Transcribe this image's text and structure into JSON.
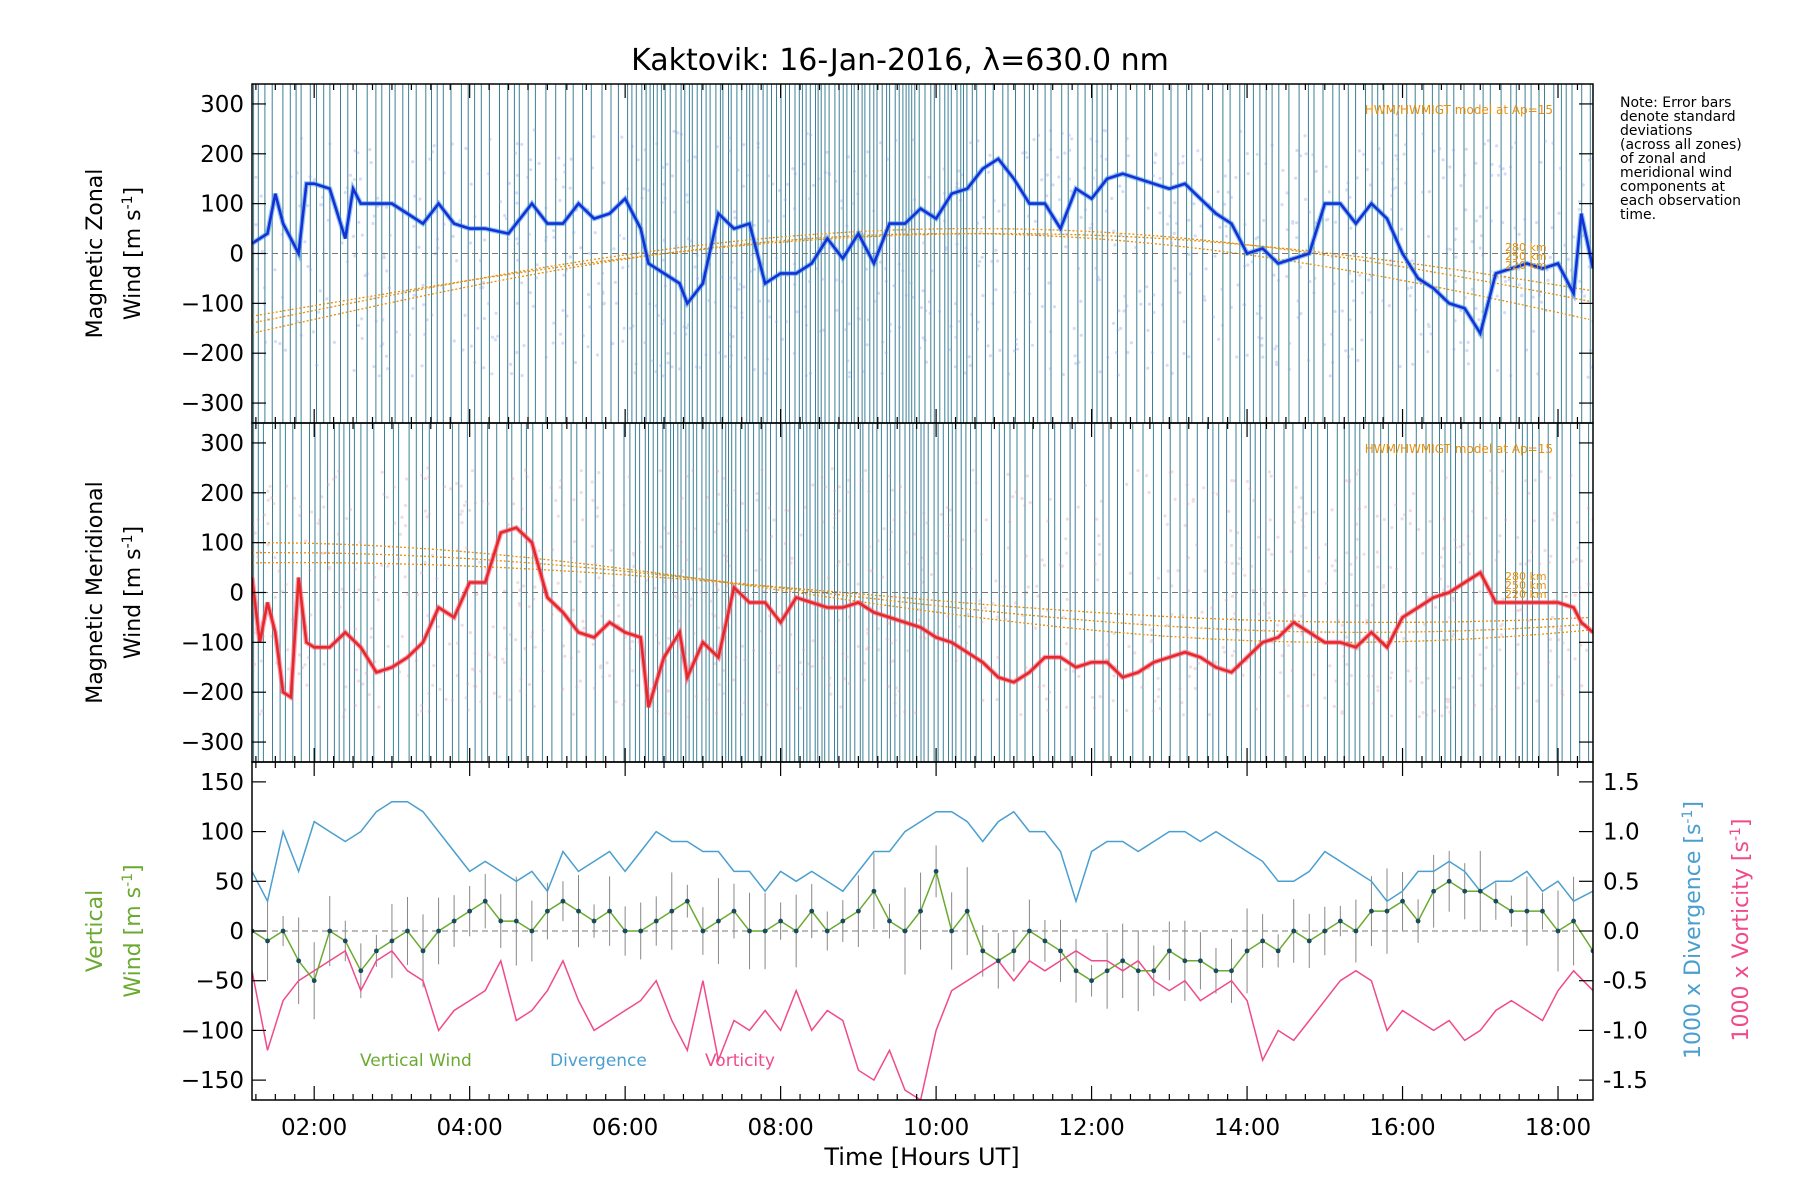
{
  "note_lines": [
    "Note: Error bars",
    "denote standard",
    "deviations",
    "(across all zones)",
    "of zonal and",
    "meridional wind",
    "components at",
    "each observation",
    "time."
  ],
  "chart_data": [
    {
      "type": "line",
      "title": "Kaktovik: 16-Jan-2016, λ=630.0 nm",
      "ylabel": [
        "Magnetic Zonal",
        "Wind [m s",
        "-1",
        "]"
      ],
      "xlim": [
        1.2,
        18.45
      ],
      "ylim": [
        -340,
        340
      ],
      "yticks": [
        300,
        200,
        100,
        0,
        -100,
        -200,
        -300
      ],
      "model_label": "HWM/HWMIGT model at Ap=15",
      "altitude_labels": [
        "280 km",
        "250 km",
        "220 km"
      ],
      "colors": {
        "wind": "#1530d8",
        "wind_light": "#3c9be0",
        "model": "#e8900a",
        "error_bars": "#1a6b86",
        "zones": "#8aa0e8"
      },
      "x": [
        1.2,
        1.3,
        1.4,
        1.5,
        1.6,
        1.8,
        1.9,
        2.0,
        2.2,
        2.4,
        2.5,
        2.6,
        2.8,
        3.0,
        3.2,
        3.4,
        3.6,
        3.8,
        4.0,
        4.2,
        4.5,
        4.8,
        5.0,
        5.2,
        5.4,
        5.6,
        5.8,
        6.0,
        6.2,
        6.3,
        6.5,
        6.7,
        6.8,
        7.0,
        7.2,
        7.4,
        7.6,
        7.8,
        8.0,
        8.2,
        8.4,
        8.6,
        8.8,
        9.0,
        9.2,
        9.4,
        9.6,
        9.8,
        10.0,
        10.2,
        10.4,
        10.6,
        10.8,
        11.0,
        11.2,
        11.4,
        11.6,
        11.8,
        12.0,
        12.2,
        12.4,
        12.6,
        12.8,
        13.0,
        13.2,
        13.4,
        13.6,
        13.8,
        14.0,
        14.2,
        14.4,
        14.6,
        14.8,
        15.0,
        15.2,
        15.4,
        15.6,
        15.8,
        16.0,
        16.2,
        16.4,
        16.6,
        16.8,
        17.0,
        17.2,
        17.4,
        17.6,
        17.8,
        18.0,
        18.2,
        18.3,
        18.45
      ],
      "y": [
        20,
        30,
        40,
        120,
        60,
        0,
        140,
        140,
        130,
        30,
        130,
        100,
        100,
        100,
        80,
        60,
        100,
        60,
        50,
        50,
        40,
        100,
        60,
        60,
        100,
        70,
        80,
        110,
        50,
        -20,
        -40,
        -60,
        -100,
        -60,
        80,
        50,
        60,
        -60,
        -40,
        -40,
        -20,
        30,
        -10,
        40,
        -20,
        60,
        60,
        90,
        70,
        120,
        130,
        170,
        190,
        150,
        100,
        100,
        50,
        130,
        110,
        150,
        160,
        150,
        140,
        130,
        140,
        110,
        80,
        60,
        0,
        10,
        -20,
        -10,
        0,
        100,
        100,
        60,
        100,
        70,
        0,
        -50,
        -70,
        -100,
        -110,
        -160,
        -40,
        -30,
        -20,
        -30,
        -20,
        -80,
        80,
        -30
      ]
    },
    {
      "type": "line",
      "ylabel": [
        "Magnetic Meridional",
        "Wind [m s",
        "-1",
        "]"
      ],
      "xlim": [
        1.2,
        18.45
      ],
      "ylim": [
        -340,
        340
      ],
      "yticks": [
        300,
        200,
        100,
        0,
        -100,
        -200,
        -300
      ],
      "model_label": "HWM/HWMIGT model at Ap=15",
      "altitude_labels": [
        "280 km",
        "250 km",
        "220 km"
      ],
      "colors": {
        "wind": "#e82828",
        "wind_light": "#f06080",
        "model": "#e8900a",
        "error_bars": "#1a6b86",
        "zones": "#e09aa8"
      },
      "x": [
        1.2,
        1.3,
        1.4,
        1.5,
        1.6,
        1.7,
        1.8,
        1.9,
        2.0,
        2.2,
        2.4,
        2.6,
        2.8,
        3.0,
        3.2,
        3.4,
        3.6,
        3.8,
        4.0,
        4.2,
        4.4,
        4.6,
        4.8,
        5.0,
        5.2,
        5.4,
        5.6,
        5.8,
        6.0,
        6.2,
        6.3,
        6.5,
        6.7,
        6.8,
        7.0,
        7.2,
        7.4,
        7.6,
        7.8,
        8.0,
        8.2,
        8.4,
        8.6,
        8.8,
        9.0,
        9.2,
        9.4,
        9.6,
        9.8,
        10.0,
        10.2,
        10.4,
        10.6,
        10.8,
        11.0,
        11.2,
        11.4,
        11.6,
        11.8,
        12.0,
        12.2,
        12.4,
        12.6,
        12.8,
        13.0,
        13.2,
        13.4,
        13.6,
        13.8,
        14.0,
        14.2,
        14.4,
        14.6,
        14.8,
        15.0,
        15.2,
        15.4,
        15.6,
        15.8,
        16.0,
        16.2,
        16.4,
        16.6,
        16.8,
        17.0,
        17.2,
        17.4,
        17.6,
        17.8,
        18.0,
        18.2,
        18.3,
        18.45
      ],
      "y": [
        30,
        -100,
        -20,
        -80,
        -200,
        -210,
        30,
        -100,
        -110,
        -110,
        -80,
        -110,
        -160,
        -150,
        -130,
        -100,
        -30,
        -50,
        20,
        20,
        120,
        130,
        100,
        -10,
        -40,
        -80,
        -90,
        -60,
        -80,
        -90,
        -230,
        -130,
        -80,
        -170,
        -100,
        -130,
        10,
        -20,
        -20,
        -60,
        -10,
        -20,
        -30,
        -30,
        -20,
        -40,
        -50,
        -60,
        -70,
        -90,
        -100,
        -120,
        -140,
        -170,
        -180,
        -160,
        -130,
        -130,
        -150,
        -140,
        -140,
        -170,
        -160,
        -140,
        -130,
        -120,
        -130,
        -150,
        -160,
        -130,
        -100,
        -90,
        -60,
        -80,
        -100,
        -100,
        -110,
        -80,
        -110,
        -50,
        -30,
        -10,
        0,
        20,
        40,
        -20,
        -20,
        -20,
        -20,
        -20,
        -30,
        -60,
        -80
      ]
    },
    {
      "type": "line",
      "ylabel": [
        "Vertical",
        "Wind [m s",
        "-1",
        "]"
      ],
      "y2label": [
        "1000 x Divergence [s",
        "-1",
        "]"
      ],
      "y3label": [
        "1000 x Vorticity [s",
        "-1",
        "]"
      ],
      "xlabel": "Time [Hours UT]",
      "xlim": [
        1.2,
        18.45
      ],
      "ylim": [
        -170,
        170
      ],
      "yticks": [
        150,
        100,
        50,
        0,
        -50,
        -100,
        -150
      ],
      "y2lim": [
        -1.7,
        1.7
      ],
      "y2ticks": [
        "1.5",
        "1.0",
        "0.5",
        "0.0",
        "-0.5",
        "-1.0",
        "-1.5"
      ],
      "xticks": [
        "02:00",
        "04:00",
        "06:00",
        "08:00",
        "10:00",
        "12:00",
        "14:00",
        "16:00",
        "18:00"
      ],
      "xtick_values": [
        2,
        4,
        6,
        8,
        10,
        12,
        14,
        16,
        18
      ],
      "legend": [
        "Vertical Wind",
        "Divergence",
        "Vorticity"
      ],
      "colors": {
        "vertical": "#6aaa30",
        "divergence": "#4a9fd0",
        "vorticity": "#f04a8a",
        "points": "#1a4a60",
        "error_bars": "#888888"
      },
      "x": [
        1.2,
        1.4,
        1.6,
        1.8,
        2.0,
        2.2,
        2.4,
        2.6,
        2.8,
        3.0,
        3.2,
        3.4,
        3.6,
        3.8,
        4.0,
        4.2,
        4.4,
        4.6,
        4.8,
        5.0,
        5.2,
        5.4,
        5.6,
        5.8,
        6.0,
        6.2,
        6.4,
        6.6,
        6.8,
        7.0,
        7.2,
        7.4,
        7.6,
        7.8,
        8.0,
        8.2,
        8.4,
        8.6,
        8.8,
        9.0,
        9.2,
        9.4,
        9.6,
        9.8,
        10.0,
        10.2,
        10.4,
        10.6,
        10.8,
        11.0,
        11.2,
        11.4,
        11.6,
        11.8,
        12.0,
        12.2,
        12.4,
        12.6,
        12.8,
        13.0,
        13.2,
        13.4,
        13.6,
        13.8,
        14.0,
        14.2,
        14.4,
        14.6,
        14.8,
        15.0,
        15.2,
        15.4,
        15.6,
        15.8,
        16.0,
        16.2,
        16.4,
        16.6,
        16.8,
        17.0,
        17.2,
        17.4,
        17.6,
        17.8,
        18.0,
        18.2,
        18.45
      ],
      "y": [
        0,
        -10,
        0,
        -30,
        -50,
        0,
        -10,
        -40,
        -20,
        -10,
        0,
        -20,
        0,
        10,
        20,
        30,
        10,
        10,
        0,
        20,
        30,
        20,
        10,
        20,
        0,
        0,
        10,
        20,
        30,
        0,
        10,
        20,
        0,
        0,
        10,
        0,
        20,
        0,
        10,
        20,
        40,
        10,
        0,
        20,
        60,
        0,
        20,
        -20,
        -30,
        -20,
        0,
        -10,
        -20,
        -40,
        -50,
        -40,
        -30,
        -40,
        -40,
        -20,
        -30,
        -30,
        -40,
        -40,
        -20,
        -10,
        -20,
        0,
        -10,
        0,
        10,
        0,
        20,
        20,
        30,
        10,
        40,
        50,
        40,
        40,
        30,
        20,
        20,
        20,
        0,
        10,
        -20
      ],
      "divergence": [
        0.6,
        0.3,
        1.0,
        0.6,
        1.1,
        1.0,
        0.9,
        1.0,
        1.2,
        1.3,
        1.3,
        1.2,
        1.0,
        0.8,
        0.6,
        0.7,
        0.6,
        0.5,
        0.6,
        0.4,
        0.8,
        0.6,
        0.7,
        0.8,
        0.6,
        0.8,
        1.0,
        0.9,
        0.9,
        0.8,
        0.8,
        0.6,
        0.6,
        0.4,
        0.6,
        0.5,
        0.6,
        0.5,
        0.4,
        0.6,
        0.8,
        0.8,
        1.0,
        1.1,
        1.2,
        1.2,
        1.1,
        0.9,
        1.1,
        1.2,
        1.0,
        1.0,
        0.8,
        0.3,
        0.8,
        0.9,
        0.9,
        0.8,
        0.9,
        1.0,
        1.0,
        0.9,
        1.0,
        0.9,
        0.8,
        0.7,
        0.5,
        0.5,
        0.6,
        0.8,
        0.7,
        0.6,
        0.5,
        0.3,
        0.4,
        0.6,
        0.6,
        0.7,
        0.6,
        0.4,
        0.5,
        0.5,
        0.6,
        0.4,
        0.5,
        0.3,
        0.4
      ],
      "vorticity": [
        -0.4,
        -1.2,
        -0.7,
        -0.5,
        -0.4,
        -0.3,
        -0.2,
        -0.6,
        -0.3,
        -0.2,
        -0.4,
        -0.5,
        -1.0,
        -0.8,
        -0.7,
        -0.6,
        -0.3,
        -0.9,
        -0.8,
        -0.6,
        -0.3,
        -0.7,
        -1.0,
        -0.9,
        -0.8,
        -0.7,
        -0.5,
        -0.9,
        -1.2,
        -0.5,
        -1.3,
        -0.9,
        -1.0,
        -0.8,
        -1.0,
        -0.6,
        -1.0,
        -0.8,
        -0.9,
        -1.4,
        -1.5,
        -1.2,
        -1.6,
        -1.7,
        -1.0,
        -0.6,
        -0.5,
        -0.4,
        -0.3,
        -0.5,
        -0.3,
        -0.4,
        -0.3,
        -0.2,
        -0.3,
        -0.3,
        -0.4,
        -0.3,
        -0.5,
        -0.6,
        -0.5,
        -0.7,
        -0.6,
        -0.5,
        -0.7,
        -1.3,
        -1.0,
        -1.1,
        -0.9,
        -0.7,
        -0.5,
        -0.4,
        -0.5,
        -1.0,
        -0.8,
        -0.9,
        -1.0,
        -0.9,
        -1.1,
        -1.0,
        -0.8,
        -0.7,
        -0.8,
        -0.9,
        -0.6,
        -0.4,
        -0.6
      ]
    }
  ]
}
